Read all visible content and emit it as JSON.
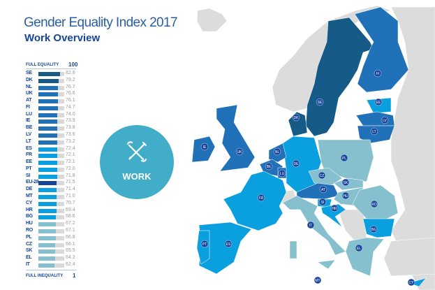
{
  "header": {
    "title": "Gender Equality Index 2017",
    "subtitle": "Work Overview"
  },
  "scale": {
    "top_label": "FULL EQUALITY",
    "top_value": "100",
    "bottom_label": "FULL INEQUALITY",
    "bottom_value": "1"
  },
  "badge": {
    "label": "WORK",
    "icon": "wrench-pencil-icon",
    "color": "#41adc9"
  },
  "colors": {
    "dark": "#165b87",
    "medium": "#2171b9",
    "bright": "#0aa0df",
    "light": "#86c0cf",
    "eu": "#17459a",
    "track": "#d9d9d9",
    "land": "#dcdcdc"
  },
  "chart_data": {
    "type": "bar",
    "orientation": "horizontal",
    "xlim": [
      0,
      100
    ],
    "categories": [
      "SE",
      "DK",
      "NL",
      "UK",
      "AT",
      "FI",
      "LU",
      "IE",
      "BE",
      "LV",
      "LT",
      "ES",
      "FR",
      "EE",
      "PT",
      "SI",
      "EU-28",
      "DE",
      "MT",
      "CY",
      "HR",
      "BG",
      "HU",
      "RO",
      "PL",
      "CZ",
      "SK",
      "EL",
      "IT"
    ],
    "values": [
      82.6,
      79.2,
      76.7,
      76.6,
      76.1,
      74.7,
      74.0,
      73.9,
      73.8,
      73.6,
      73.2,
      72.4,
      72.1,
      72.1,
      72.0,
      71.8,
      71.5,
      71.4,
      71.0,
      70.7,
      69.4,
      68.6,
      67.2,
      67.1,
      66.8,
      66.1,
      65.5,
      64.2,
      62.4
    ],
    "labels": [
      "82.6",
      "79.2",
      "76.7",
      "76.6",
      "76.1",
      "74.7",
      "74.0",
      "73.9",
      "73.8",
      "73.6",
      "73.2",
      "72.4",
      "72.1",
      "72.1",
      "72.0",
      "71.8",
      "71.5",
      "71.4",
      "71.0",
      "70.7",
      "69.4",
      "68.6",
      "67.2",
      "67.1",
      "66.8",
      "66.1",
      "65.5",
      "64.2",
      "62.4"
    ],
    "groups": [
      "dark",
      "dark",
      "medium",
      "medium",
      "medium",
      "medium",
      "medium",
      "medium",
      "medium",
      "medium",
      "medium",
      "bright",
      "bright",
      "bright",
      "bright",
      "bright",
      "eu",
      "bright",
      "bright",
      "bright",
      "bright",
      "bright",
      "light",
      "light",
      "light",
      "light",
      "light",
      "light",
      "light"
    ]
  }
}
